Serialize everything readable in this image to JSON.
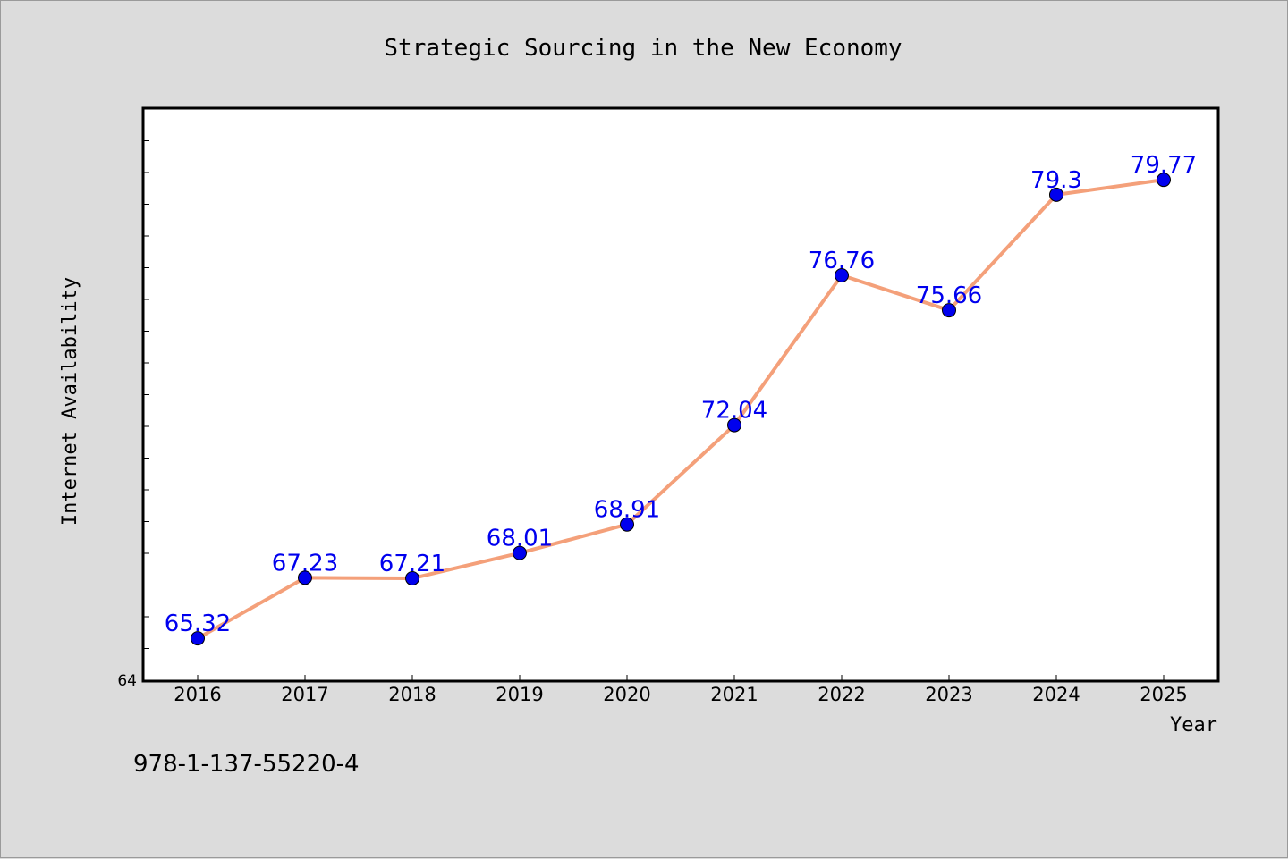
{
  "chart_data": {
    "type": "line",
    "title": "Strategic Sourcing in the New Economy",
    "xlabel": "Year",
    "ylabel": "Internet Availability",
    "categories": [
      "2016",
      "2017",
      "2018",
      "2019",
      "2020",
      "2021",
      "2022",
      "2023",
      "2024",
      "2025"
    ],
    "series": [
      {
        "values": [
          65.32,
          67.23,
          67.21,
          68.01,
          68.91,
          72.04,
          76.76,
          75.66,
          79.3,
          79.77
        ],
        "data_labels": [
          "65.32",
          "67.23",
          "67.21",
          "68.01",
          "68.91",
          "72.04",
          "76.76",
          "75.66",
          "79.3",
          "79.77"
        ]
      }
    ],
    "ylim": [
      64,
      82
    ],
    "y_tick_labels": [
      "64"
    ],
    "grid": false,
    "line_color": "#f4a07a",
    "marker_color": "#0000ee",
    "label_color": "#0000ee"
  },
  "footnote": "978-1-137-55220-4"
}
